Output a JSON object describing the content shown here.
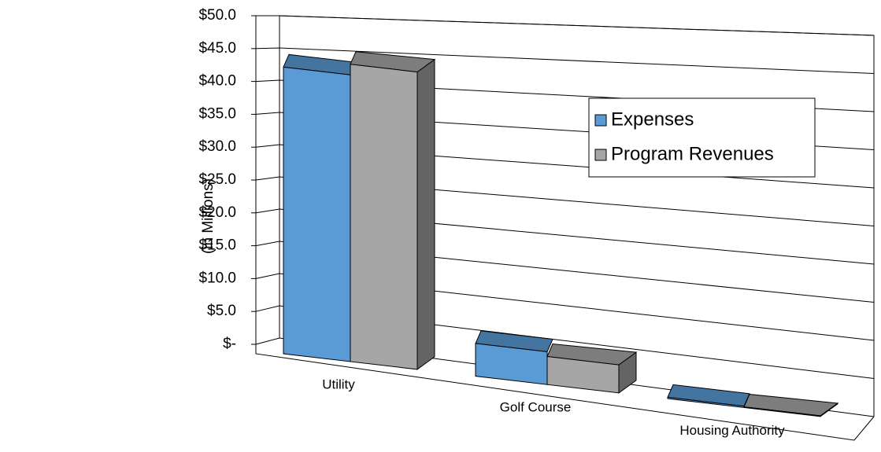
{
  "chart_data": {
    "type": "bar3d",
    "y_label": "(in Millions)",
    "categories": [
      "Utility",
      "Golf Course",
      "Housing Authority"
    ],
    "series": [
      {
        "name": "Expenses",
        "color": "#5b9bd5",
        "values": [
          42.9,
          4.9,
          0.2
        ]
      },
      {
        "name": "Program Revenues",
        "color": "#a6a6a6",
        "values": [
          44.5,
          4.2,
          0.1
        ]
      }
    ],
    "ylim": [
      0,
      50
    ],
    "yticks": [
      {
        "value": 0,
        "label": "$-"
      },
      {
        "value": 5,
        "label": "$5.0"
      },
      {
        "value": 10,
        "label": "$10.0"
      },
      {
        "value": 15,
        "label": "$15.0"
      },
      {
        "value": 20,
        "label": "$20.0"
      },
      {
        "value": 25,
        "label": "$25.0"
      },
      {
        "value": 30,
        "label": "$30.0"
      },
      {
        "value": 35,
        "label": "$35.0"
      },
      {
        "value": 40,
        "label": "$40.0"
      },
      {
        "value": 45,
        "label": "$45.0"
      },
      {
        "value": 50,
        "label": "$50.0"
      }
    ],
    "grid": true,
    "legend": "right"
  }
}
